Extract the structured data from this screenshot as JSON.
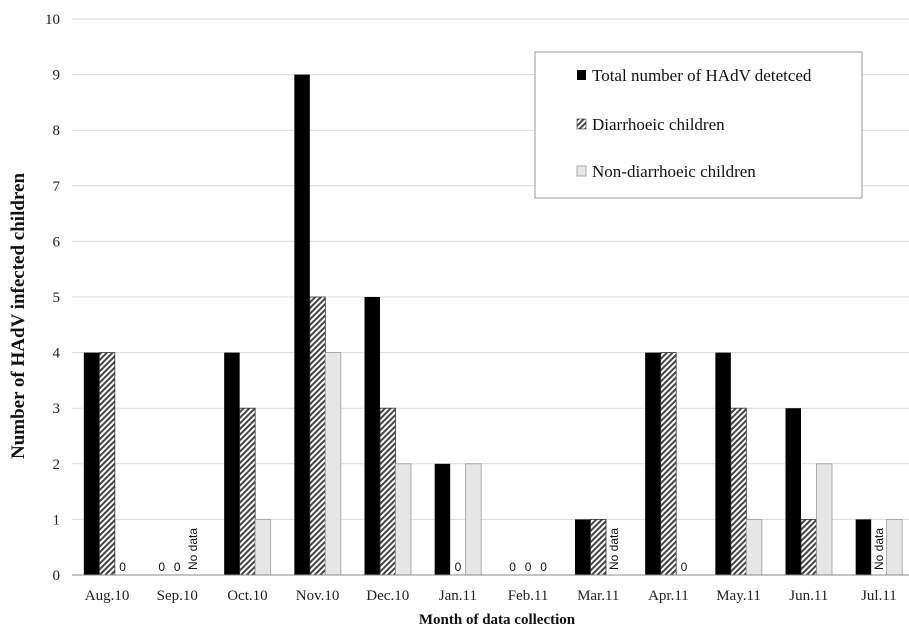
{
  "chart_data": {
    "type": "bar",
    "xlabel": "Month of data collection",
    "ylabel": "Number of HAdV infected children",
    "ylim": [
      0,
      10
    ],
    "yticks": [
      0,
      1,
      2,
      3,
      4,
      5,
      6,
      7,
      8,
      9,
      10
    ],
    "grid": true,
    "legend_position": "top-right",
    "categories": [
      "Aug.10",
      "Sep.10",
      "Oct.10",
      "Nov.10",
      "Dec.10",
      "Jan.11",
      "Feb.11",
      "Mar.11",
      "Apr.11",
      "May.11",
      "Jun.11",
      "Jul.11"
    ],
    "series": [
      {
        "name": "Total number of HAdV detetced",
        "style": "solid",
        "color": "#000000",
        "values": [
          4,
          0,
          4,
          9,
          5,
          2,
          0,
          1,
          4,
          4,
          3,
          1
        ]
      },
      {
        "name": "Diarrhoeic children",
        "style": "hatched",
        "color": "#555555",
        "values": [
          4,
          0,
          3,
          5,
          3,
          0,
          0,
          1,
          4,
          3,
          1,
          null
        ]
      },
      {
        "name": "Non-diarrhoeic children",
        "style": "light",
        "color": "#e6e6e6",
        "values": [
          0,
          null,
          1,
          4,
          2,
          2,
          0,
          null,
          0,
          1,
          2,
          1
        ]
      }
    ],
    "annotations": {
      "zero_label": "0",
      "no_data_label": "No data"
    }
  }
}
